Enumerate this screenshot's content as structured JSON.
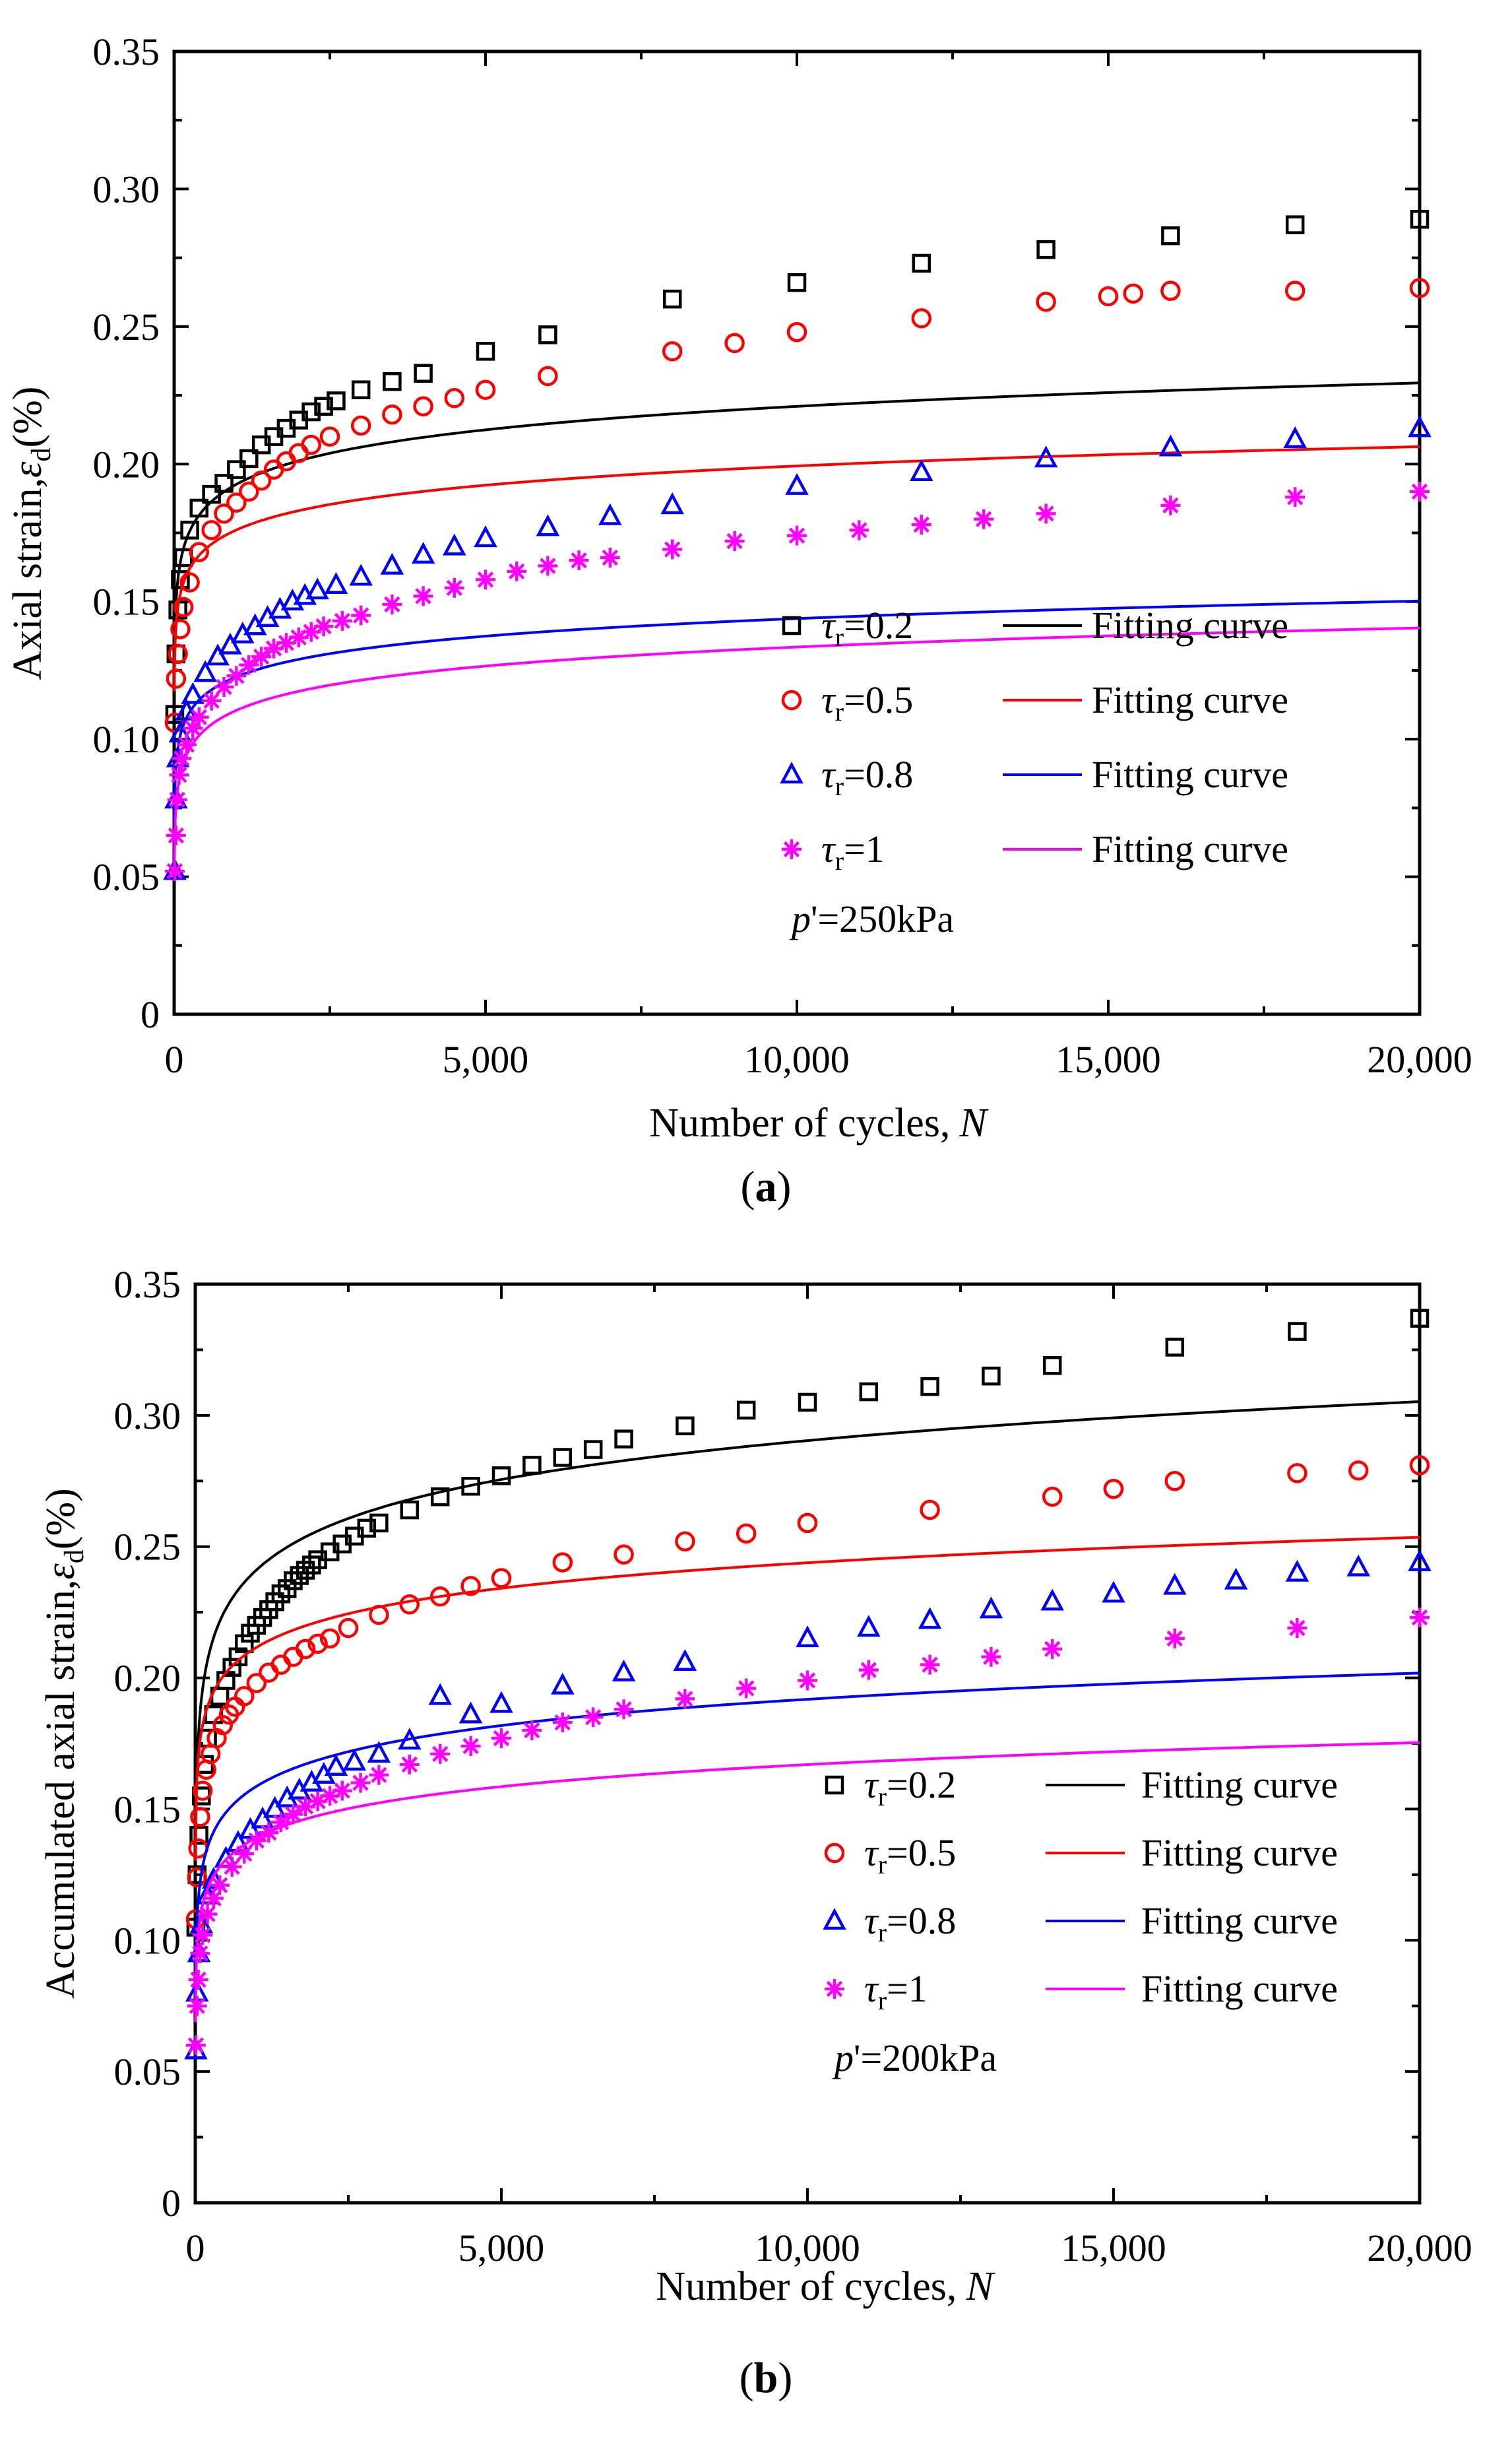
{
  "chart_data": [
    {
      "type": "line",
      "panel_label": "a",
      "xlabel": "Number of cycles,",
      "xlabel_var": "N",
      "ylabel": "Axial strain,",
      "ylabel_var": "ε",
      "ylabel_sub": "d",
      "ylabel_unit": "(%)",
      "xlim": [
        0,
        20000
      ],
      "ylim": [
        0,
        0.35
      ],
      "xticks": [
        0,
        5000,
        10000,
        15000,
        20000
      ],
      "xtick_labels": [
        "0",
        "5,000",
        "10,000",
        "15,000",
        "20,000"
      ],
      "yticks": [
        0,
        0.05,
        0.1,
        0.15,
        0.2,
        0.25,
        0.3,
        0.35
      ],
      "ytick_labels": [
        "0",
        "0.05",
        "0.10",
        "0.15",
        "0.20",
        "0.25",
        "0.30",
        "0.35"
      ],
      "annotation": {
        "var": "p",
        "text": "'=250kPa"
      },
      "series": [
        {
          "legend_var": "τ",
          "legend_sub": "r",
          "legend_text": "=0.2",
          "fit_label": "Fitting curve",
          "marker": "square",
          "color": "#000000",
          "fit": {
            "a": 0.1077,
            "b": 0.0123
          },
          "x": [
            10,
            30,
            60,
            100,
            150,
            250,
            400,
            600,
            800,
            1000,
            1200,
            1400,
            1600,
            1800,
            2000,
            2200,
            2400,
            2600,
            3000,
            3500,
            4000,
            5000,
            6000,
            8000,
            10000,
            12000,
            14000,
            16000,
            18000,
            20000
          ],
          "y": [
            0.109,
            0.131,
            0.147,
            0.158,
            0.166,
            0.176,
            0.184,
            0.189,
            0.193,
            0.198,
            0.202,
            0.207,
            0.21,
            0.213,
            0.216,
            0.219,
            0.221,
            0.223,
            0.227,
            0.23,
            0.233,
            0.241,
            0.247,
            0.26,
            0.266,
            0.273,
            0.278,
            0.283,
            0.287,
            0.289
          ]
        },
        {
          "legend_var": "τ",
          "legend_sub": "r",
          "legend_text": "=0.5",
          "fit_label": "Fitting curve",
          "marker": "circle",
          "color": "#ff0000",
          "fit": {
            "a": 0.1063,
            "b": 0.0101
          },
          "x": [
            10,
            30,
            60,
            100,
            150,
            250,
            400,
            600,
            800,
            1000,
            1200,
            1400,
            1600,
            1800,
            2000,
            2200,
            2500,
            3000,
            3500,
            4000,
            4500,
            5000,
            6000,
            8000,
            9000,
            10000,
            12000,
            14000,
            15000,
            15400,
            16000,
            18000,
            20000
          ],
          "y": [
            0.106,
            0.122,
            0.131,
            0.14,
            0.148,
            0.157,
            0.168,
            0.176,
            0.182,
            0.186,
            0.19,
            0.194,
            0.198,
            0.201,
            0.204,
            0.207,
            0.21,
            0.214,
            0.218,
            0.221,
            0.224,
            0.227,
            0.232,
            0.241,
            0.244,
            0.248,
            0.253,
            0.259,
            0.261,
            0.262,
            0.263,
            0.263,
            0.264
          ]
        },
        {
          "legend_var": "τ",
          "legend_sub": "r",
          "legend_text": "=0.8",
          "fit_label": "Fitting curve",
          "marker": "triangle",
          "color": "#0000ff",
          "fit": {
            "a": 0.0591,
            "b": 0.0092
          },
          "x": [
            10,
            30,
            60,
            100,
            200,
            300,
            500,
            700,
            900,
            1100,
            1300,
            1500,
            1700,
            1900,
            2100,
            2300,
            2600,
            3000,
            3500,
            4000,
            4500,
            5000,
            6000,
            7000,
            8000,
            10000,
            12000,
            14000,
            16000,
            18000,
            20000
          ],
          "y": [
            0.052,
            0.078,
            0.093,
            0.102,
            0.11,
            0.116,
            0.124,
            0.13,
            0.134,
            0.138,
            0.141,
            0.144,
            0.147,
            0.15,
            0.152,
            0.154,
            0.156,
            0.159,
            0.163,
            0.167,
            0.17,
            0.173,
            0.177,
            0.181,
            0.185,
            0.192,
            0.197,
            0.202,
            0.206,
            0.209,
            0.213
          ]
        },
        {
          "legend_var": "τ",
          "legend_sub": "r",
          "legend_text": "=1",
          "fit_label": "Fitting curve",
          "marker": "star",
          "color": "#ff00ff",
          "fit": {
            "a": 0.0414,
            "b": 0.01
          },
          "x": [
            10,
            30,
            50,
            80,
            120,
            200,
            300,
            400,
            600,
            800,
            1000,
            1200,
            1400,
            1600,
            1800,
            2000,
            2200,
            2400,
            2700,
            3000,
            3500,
            4000,
            4500,
            5000,
            5500,
            6000,
            6500,
            7000,
            8000,
            9000,
            10000,
            11000,
            12000,
            13000,
            14000,
            16000,
            18000,
            20000
          ],
          "y": [
            0.052,
            0.065,
            0.078,
            0.087,
            0.093,
            0.098,
            0.104,
            0.108,
            0.114,
            0.119,
            0.123,
            0.127,
            0.13,
            0.133,
            0.135,
            0.137,
            0.139,
            0.141,
            0.143,
            0.145,
            0.149,
            0.152,
            0.155,
            0.158,
            0.161,
            0.163,
            0.165,
            0.166,
            0.169,
            0.172,
            0.174,
            0.176,
            0.178,
            0.18,
            0.182,
            0.185,
            0.188,
            0.19
          ]
        }
      ]
    },
    {
      "type": "line",
      "panel_label": "b",
      "xlabel": "Number of cycles,",
      "xlabel_var": "N",
      "ylabel": "Accumulated axial strain,",
      "ylabel_var": "ε",
      "ylabel_sub": "d",
      "ylabel_unit": "(%)",
      "xlim": [
        0,
        20000
      ],
      "ylim": [
        0,
        0.35
      ],
      "xticks": [
        0,
        5000,
        10000,
        15000,
        20000
      ],
      "xtick_labels": [
        "0",
        "5,000",
        "10,000",
        "15,000",
        "20,000"
      ],
      "yticks": [
        0,
        0.05,
        0.1,
        0.15,
        0.2,
        0.25,
        0.3,
        0.35
      ],
      "ytick_labels": [
        "0",
        "0.05",
        "0.10",
        "0.15",
        "0.20",
        "0.25",
        "0.30",
        "0.35"
      ],
      "annotation": {
        "var": "p",
        "text": "'=200kPa"
      },
      "series": [
        {
          "legend_var": "τ",
          "legend_sub": "r",
          "legend_text": "=0.2",
          "fit_label": "Fitting curve",
          "marker": "square",
          "color": "#000000",
          "fit": {
            "a": 0.0933,
            "b": 0.0214
          },
          "x": [
            10,
            30,
            60,
            100,
            150,
            200,
            300,
            400,
            500,
            600,
            700,
            800,
            900,
            1000,
            1100,
            1200,
            1300,
            1400,
            1500,
            1600,
            1700,
            1800,
            1900,
            2000,
            2200,
            2400,
            2600,
            2800,
            3000,
            3500,
            4000,
            4500,
            5000,
            5500,
            6000,
            6500,
            7000,
            8000,
            9000,
            10000,
            11000,
            12000,
            13000,
            14000,
            16000,
            18000,
            20000
          ],
          "y": [
            0.105,
            0.125,
            0.14,
            0.155,
            0.167,
            0.177,
            0.186,
            0.193,
            0.199,
            0.204,
            0.208,
            0.213,
            0.217,
            0.22,
            0.223,
            0.226,
            0.229,
            0.232,
            0.234,
            0.237,
            0.239,
            0.241,
            0.243,
            0.245,
            0.248,
            0.251,
            0.254,
            0.257,
            0.259,
            0.264,
            0.269,
            0.273,
            0.277,
            0.281,
            0.284,
            0.287,
            0.291,
            0.296,
            0.302,
            0.305,
            0.309,
            0.311,
            0.315,
            0.319,
            0.326,
            0.332,
            0.337
          ]
        },
        {
          "legend_var": "τ",
          "legend_sub": "r",
          "legend_text": "=0.5",
          "fit_label": "Fitting curve",
          "marker": "circle",
          "color": "#ff0000",
          "fit": {
            "a": 0.1149,
            "b": 0.014
          },
          "x": [
            10,
            30,
            50,
            80,
            120,
            180,
            250,
            350,
            450,
            550,
            650,
            800,
            1000,
            1200,
            1400,
            1600,
            1800,
            2000,
            2200,
            2500,
            3000,
            3500,
            4000,
            4500,
            5000,
            6000,
            7000,
            8000,
            9000,
            10000,
            12000,
            14000,
            15000,
            16000,
            18000,
            19000,
            20000
          ],
          "y": [
            0.108,
            0.124,
            0.135,
            0.147,
            0.157,
            0.165,
            0.171,
            0.177,
            0.182,
            0.186,
            0.189,
            0.193,
            0.198,
            0.202,
            0.205,
            0.208,
            0.211,
            0.213,
            0.215,
            0.219,
            0.224,
            0.228,
            0.231,
            0.235,
            0.238,
            0.244,
            0.247,
            0.252,
            0.255,
            0.259,
            0.264,
            0.269,
            0.272,
            0.275,
            0.278,
            0.279,
            0.281
          ]
        },
        {
          "legend_var": "τ",
          "legend_sub": "r",
          "legend_text": "=0.8",
          "fit_label": "Fitting curve",
          "marker": "triangle",
          "color": "#0000ff",
          "fit": {
            "a": 0.0592,
            "b": 0.0144
          },
          "x": [
            10,
            30,
            60,
            100,
            200,
            300,
            500,
            700,
            900,
            1100,
            1300,
            1500,
            1700,
            1900,
            2100,
            2300,
            2600,
            3000,
            3500,
            4000,
            4500,
            5000,
            6000,
            7000,
            8000,
            10000,
            11000,
            12000,
            13000,
            14000,
            15000,
            16000,
            17000,
            18000,
            19000,
            20000
          ],
          "y": [
            0.058,
            0.08,
            0.095,
            0.106,
            0.117,
            0.123,
            0.131,
            0.137,
            0.142,
            0.146,
            0.15,
            0.154,
            0.157,
            0.16,
            0.163,
            0.166,
            0.168,
            0.171,
            0.176,
            0.193,
            0.186,
            0.19,
            0.197,
            0.202,
            0.206,
            0.215,
            0.219,
            0.222,
            0.226,
            0.229,
            0.232,
            0.235,
            0.237,
            0.24,
            0.242,
            0.244
          ]
        },
        {
          "legend_var": "τ",
          "legend_sub": "r",
          "legend_text": "=1",
          "fit_label": "Fitting curve",
          "marker": "star",
          "color": "#ff00ff",
          "fit": {
            "a": 0.0555,
            "b": 0.0121
          },
          "x": [
            10,
            30,
            50,
            80,
            120,
            200,
            300,
            400,
            600,
            800,
            1000,
            1200,
            1400,
            1600,
            1800,
            2000,
            2200,
            2400,
            2700,
            3000,
            3500,
            4000,
            4500,
            5000,
            5500,
            6000,
            6500,
            7000,
            8000,
            9000,
            10000,
            11000,
            12000,
            13000,
            14000,
            16000,
            18000,
            20000
          ],
          "y": [
            0.06,
            0.075,
            0.085,
            0.095,
            0.102,
            0.11,
            0.116,
            0.121,
            0.128,
            0.133,
            0.138,
            0.141,
            0.145,
            0.148,
            0.151,
            0.153,
            0.155,
            0.157,
            0.16,
            0.163,
            0.167,
            0.171,
            0.174,
            0.177,
            0.18,
            0.183,
            0.185,
            0.188,
            0.192,
            0.196,
            0.199,
            0.203,
            0.205,
            0.208,
            0.211,
            0.215,
            0.219,
            0.223
          ]
        }
      ]
    }
  ]
}
